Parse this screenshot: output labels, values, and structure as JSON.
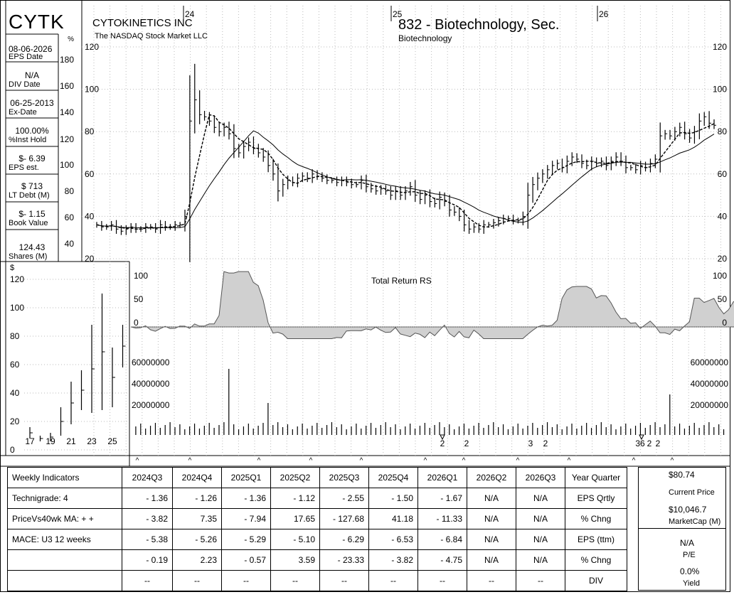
{
  "ticker": "CYTK",
  "company": "CYTOKINETICS INC",
  "exchange": "The NASDAQ Stock Market LLC",
  "industry_title": "832 - Biotechnology, Sec.",
  "industry_sub": "Biotechnology",
  "left_panel": [
    {
      "value": "08-06-2026",
      "label": "EPS Date"
    },
    {
      "value": "N/A",
      "label": "DIV Date"
    },
    {
      "value": "06-25-2013",
      "label": "Ex-Date"
    },
    {
      "value": "100.00%",
      "label": "%Inst Hold"
    },
    {
      "value": "$- 6.39",
      "label": "EPS est."
    },
    {
      "value": "$ 713",
      "label": "LT Debt (M)"
    },
    {
      "value": "$- 1.15",
      "label": "Book Value"
    },
    {
      "value": "124.43",
      "label": "Shares (M)"
    }
  ],
  "rs_label": "Total Return RS",
  "chart_data": {
    "type": "bar",
    "price_chart": {
      "x_labels": [
        "24",
        "25",
        "26"
      ],
      "y_ticks": [
        20,
        40,
        60,
        80,
        100,
        120
      ],
      "ylim": [
        20,
        120
      ],
      "left_pct_ticks": [
        "%",
        "180",
        "160",
        "140",
        "120",
        "100",
        "80",
        "60",
        "40"
      ],
      "weekly_close_estimates": [
        36,
        35,
        35,
        36,
        34,
        33,
        34,
        35,
        34,
        34,
        35,
        35,
        34,
        36,
        35,
        35,
        36,
        36,
        40,
        85,
        95,
        88,
        87,
        85,
        82,
        80,
        82,
        79,
        72,
        70,
        73,
        75,
        72,
        70,
        68,
        64,
        60,
        52,
        55,
        57,
        56,
        58,
        59,
        58,
        60,
        59,
        58,
        57,
        57,
        56,
        57,
        56,
        55,
        55,
        57,
        54,
        53,
        52,
        53,
        52,
        50,
        52,
        50,
        52,
        54,
        50,
        48,
        50,
        47,
        46,
        49,
        47,
        43,
        42,
        40,
        36,
        34,
        35,
        34,
        36,
        36,
        37,
        38,
        39,
        39,
        38,
        38,
        40,
        50,
        55,
        58,
        60,
        62,
        64,
        65,
        63,
        66,
        68,
        67,
        65,
        64,
        66,
        65,
        66,
        64,
        66,
        68,
        66,
        63,
        63,
        62,
        64,
        63,
        65,
        67,
        78,
        79,
        78,
        80,
        82,
        79,
        77,
        80,
        85,
        87,
        84,
        83
      ],
      "ma_series": [
        {
          "name": "10wk MA"
        },
        {
          "name": "40wk MA"
        }
      ]
    },
    "rs_chart": {
      "title": "Total Return RS",
      "y_ticks": [
        0,
        50,
        100
      ]
    },
    "volume_chart": {
      "y_ticks": [
        20000000,
        40000000,
        60000000
      ],
      "spikes": [
        {
          "week": 20,
          "value": 62000000
        },
        {
          "week": 28,
          "value": 30000000
        },
        {
          "week": 110,
          "value": 38000000
        }
      ],
      "eps_markers": [
        "2",
        "2",
        "3",
        "2",
        "36",
        "2",
        "2"
      ]
    },
    "annual_chart": {
      "x_labels": [
        "17",
        "19",
        "21",
        "23",
        "25"
      ],
      "y_ticks": [
        0,
        20,
        40,
        60,
        80,
        100,
        120
      ],
      "y_unit": "$",
      "bars": [
        {
          "high": 16,
          "low": 8
        },
        {
          "high": 10,
          "low": 6
        },
        {
          "high": 12,
          "low": 6
        },
        {
          "high": 30,
          "low": 10
        },
        {
          "high": 48,
          "low": 18
        },
        {
          "high": 56,
          "low": 28
        },
        {
          "high": 88,
          "low": 26
        },
        {
          "high": 110,
          "low": 28
        },
        {
          "high": 72,
          "low": 30
        },
        {
          "high": 88,
          "low": 58
        }
      ]
    }
  },
  "fundamentals": {
    "headers": [
      "Weekly Indicators",
      "2024Q3",
      "2024Q4",
      "2025Q1",
      "2025Q2",
      "2025Q3",
      "2025Q4",
      "2026Q1",
      "2026Q2",
      "2026Q3",
      "Year Quarter"
    ],
    "rows": [
      [
        "Technigrade: 4",
        "- 1.36",
        "- 1.26",
        "- 1.36",
        "- 1.12",
        "- 2.55",
        "- 1.50",
        "- 1.67",
        "N/A",
        "N/A",
        "EPS Qrtly"
      ],
      [
        "PriceVs40wk MA:  + +",
        "- 3.82",
        "7.35",
        "- 7.94",
        "17.65",
        "- 127.68",
        "41.18",
        "- 11.33",
        "N/A",
        "N/A",
        "% Chng"
      ],
      [
        "MACE: U3   12 weeks",
        "- 5.38",
        "- 5.26",
        "- 5.29",
        "- 5.10",
        "- 6.29",
        "- 6.53",
        "- 6.84",
        "N/A",
        "N/A",
        "EPS (ttm)"
      ],
      [
        "",
        "- 0.19",
        "2.23",
        "- 0.57",
        "3.59",
        "- 23.33",
        "- 3.82",
        "- 4.75",
        "N/A",
        "N/A",
        "% Chng"
      ],
      [
        "",
        "--",
        "--",
        "--",
        "--",
        "--",
        "--",
        "--",
        "--",
        "--",
        "DIV"
      ]
    ]
  },
  "right_box": {
    "price": "$80.74",
    "price_label": "Current Price",
    "mcap": "$10,046.7",
    "mcap_label": "MarketCap (M)",
    "pe": "N/A",
    "pe_label": "P/E",
    "yield": "0.0%",
    "yield_label": "Yield"
  }
}
